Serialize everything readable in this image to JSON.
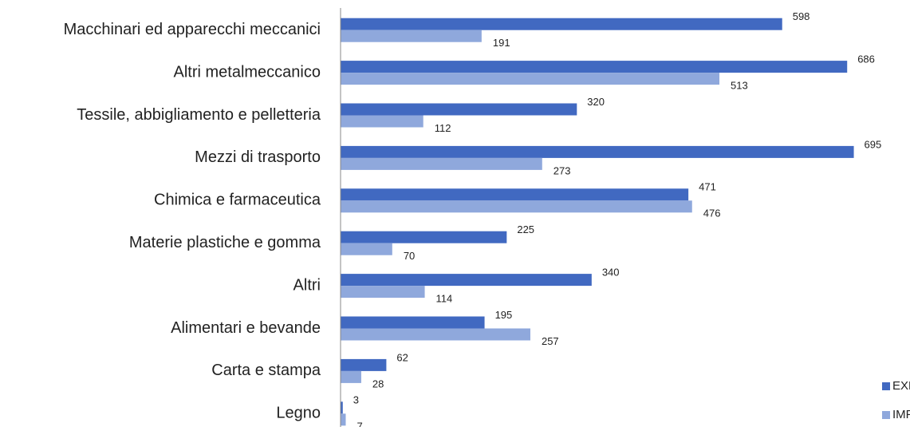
{
  "chart_data": {
    "type": "bar",
    "orientation": "horizontal",
    "categories": [
      "Macchinari ed apparecchi meccanici",
      "Altri metalmeccanico",
      "Tessile, abbigliamento e pelletteria",
      "Mezzi di trasporto",
      "Chimica e farmaceutica",
      "Materie plastiche e gomma",
      "Altri",
      "Alimentari e bevande",
      "Carta e stampa",
      "Legno"
    ],
    "series": [
      {
        "name": "EXPORT",
        "color": "#4169c1",
        "values": [
          598,
          686,
          320,
          695,
          471,
          225,
          340,
          195,
          62,
          3
        ]
      },
      {
        "name": "IMPORT",
        "color": "#8fa8dc",
        "values": [
          191,
          513,
          112,
          273,
          476,
          70,
          114,
          257,
          28,
          7
        ]
      }
    ],
    "xlim": [
      0,
      770
    ],
    "legend": "lower right"
  }
}
